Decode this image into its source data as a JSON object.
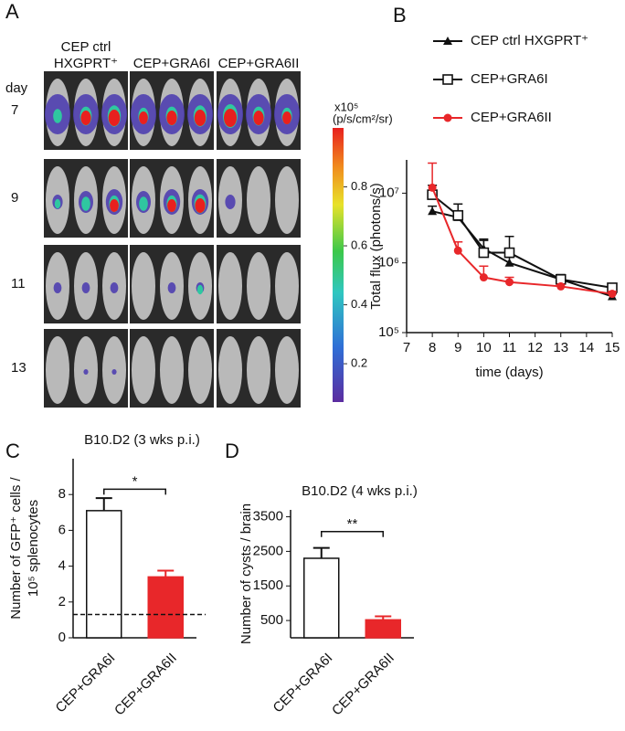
{
  "panel_a": {
    "label": "A",
    "groups": [
      "CEP ctrl\nHXGPRT⁺",
      "CEP+GRA6I",
      "CEP+GRA6II"
    ],
    "row_title": "day",
    "days": [
      7,
      9,
      11,
      13
    ],
    "colorbar": {
      "unit": "x10⁵",
      "unit2": "(p/s/cm²/sr)",
      "lim": [
        0.07,
        1.0
      ],
      "ticks": [
        0.8,
        0.6,
        0.4,
        0.2
      ]
    }
  },
  "chart_data": [
    {
      "type": "line",
      "panel": "B",
      "xlabel": "time (days)",
      "ylabel": "Total flux (photons/s)",
      "log_y": true,
      "x": [
        8,
        9,
        10,
        11,
        13,
        15
      ],
      "xlim": [
        7,
        15
      ],
      "xticks": [
        7,
        8,
        9,
        10,
        11,
        12,
        13,
        14,
        15
      ],
      "ylim": [
        100000,
        30000000
      ],
      "yticks": [
        {
          "value": 100000,
          "label": "10⁵"
        },
        {
          "value": 1000000,
          "label": "10⁶"
        },
        {
          "value": 10000000,
          "label": "10⁷"
        }
      ],
      "series": [
        {
          "name": "CEP ctrl HXGPRT⁺",
          "color": "#111111",
          "marker": "triangle",
          "values": [
            5500000,
            4500000,
            1600000,
            1000000,
            580000,
            330000
          ],
          "errors": [
            1000000,
            1000000,
            500000,
            200000,
            50000,
            30000
          ]
        },
        {
          "name": "CEP+GRA6I",
          "color": "#111111",
          "marker": "square",
          "values": [
            9500000,
            4800000,
            1400000,
            1400000,
            580000,
            440000
          ],
          "errors": [
            3500000,
            2200000,
            800000,
            1000000,
            100000,
            40000
          ]
        },
        {
          "name": "CEP+GRA6II",
          "color": "#e8272a",
          "marker": "circle",
          "values": [
            12000000,
            1500000,
            620000,
            530000,
            460000,
            360000
          ],
          "errors": [
            15000000,
            500000,
            280000,
            90000,
            30000,
            30000
          ]
        }
      ]
    },
    {
      "type": "bar",
      "panel": "C",
      "title": "B10.D2 (3 wks p.i.)",
      "ylabel": [
        "Number of GFP⁺ cells /",
        "10⁵ splenocytes"
      ],
      "categories": [
        "CEP+GRA6I",
        "CEP+GRA6II"
      ],
      "values": [
        7.1,
        3.4
      ],
      "errors": [
        0.7,
        0.35
      ],
      "colors": [
        "#ffffff",
        "#e8272a"
      ],
      "ylim": [
        0,
        10
      ],
      "yticks": [
        0,
        2,
        4,
        6,
        8
      ],
      "reference_line": 1.3,
      "significance": "*"
    },
    {
      "type": "bar",
      "panel": "D",
      "title": "B10.D2 (4 wks p.i.)",
      "ylabel": [
        "Number of cysts / brain"
      ],
      "categories": [
        "CEP+GRA6I",
        "CEP+GRA6II"
      ],
      "values": [
        2300,
        520
      ],
      "errors": [
        300,
        100
      ],
      "colors": [
        "#ffffff",
        "#e8272a"
      ],
      "ylim": [
        0,
        3700
      ],
      "yticks": [
        500,
        1500,
        2500,
        3500
      ],
      "significance": "**"
    }
  ]
}
